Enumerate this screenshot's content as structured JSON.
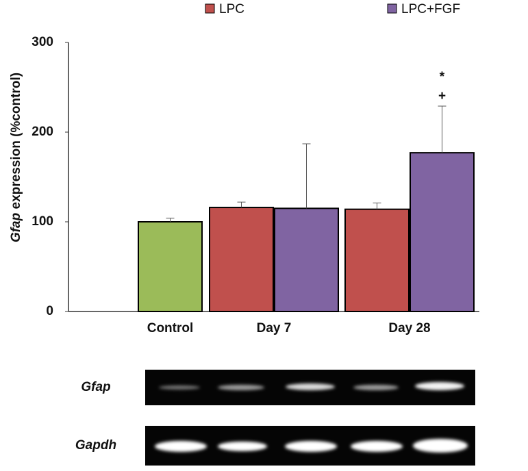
{
  "chart_data": {
    "type": "bar",
    "ylabel": [
      "Gfap",
      " expression (%control)"
    ],
    "categories": [
      "Control",
      "Day 7",
      "Day 28"
    ],
    "control": {
      "value": 100,
      "error": 4,
      "color": "#9bbb59"
    },
    "series": [
      {
        "name": "LPC",
        "color": "#c0504d",
        "values": [
          null,
          116,
          114
        ],
        "errors": [
          null,
          6,
          7
        ]
      },
      {
        "name": "LPC+FGF",
        "color": "#8064a2",
        "values": [
          null,
          115,
          177
        ],
        "errors": [
          null,
          72,
          52
        ]
      }
    ],
    "annotations": [
      "*",
      "+"
    ],
    "ylim": [
      0,
      300
    ],
    "yticks": [
      0,
      100,
      200,
      300
    ]
  },
  "blots": [
    {
      "label": "Gfap"
    },
    {
      "label": "Gapdh"
    }
  ]
}
